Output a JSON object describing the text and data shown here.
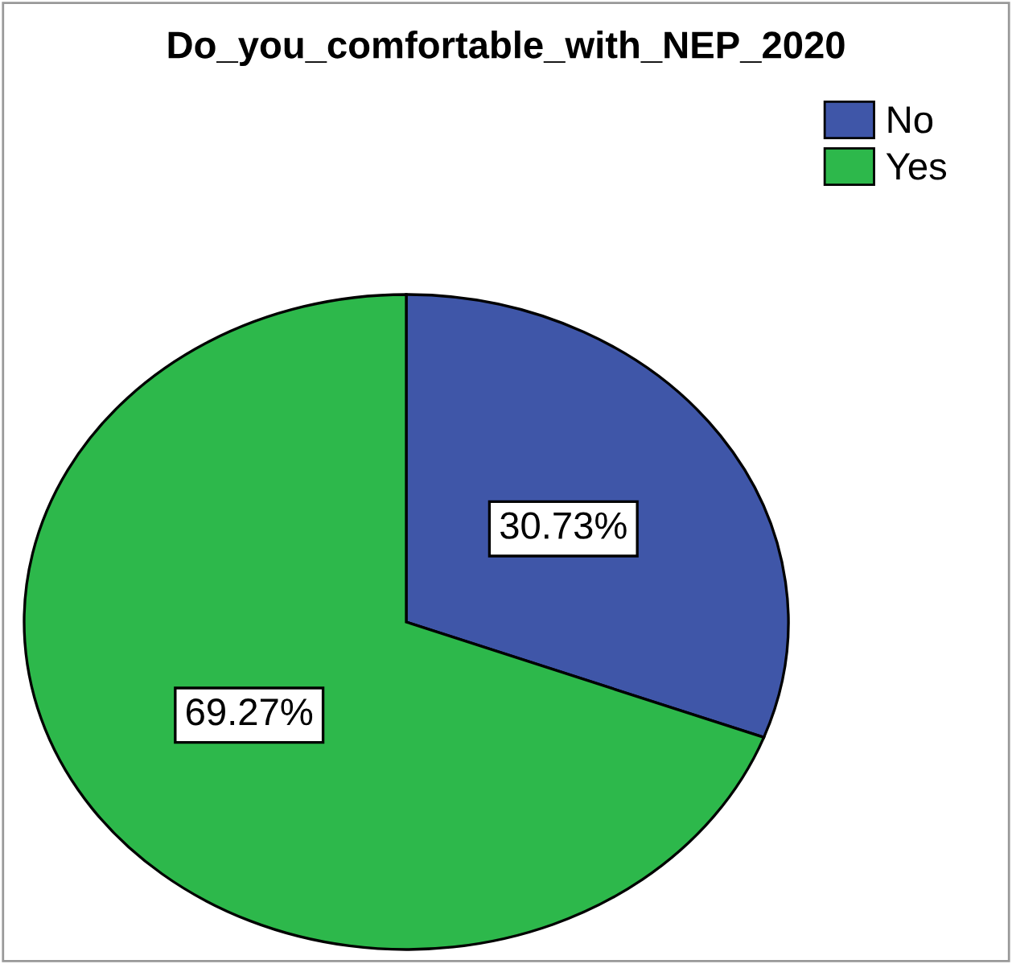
{
  "chart_data": {
    "type": "pie",
    "title": "Do_you_comfortable_with_NEP_2020",
    "categories": [
      "No",
      "Yes"
    ],
    "values": [
      30.73,
      69.27
    ],
    "colors": [
      "#3f56a8",
      "#2db84b"
    ],
    "value_labels": [
      "30.73%",
      "69.27%"
    ],
    "legend": "top right"
  }
}
